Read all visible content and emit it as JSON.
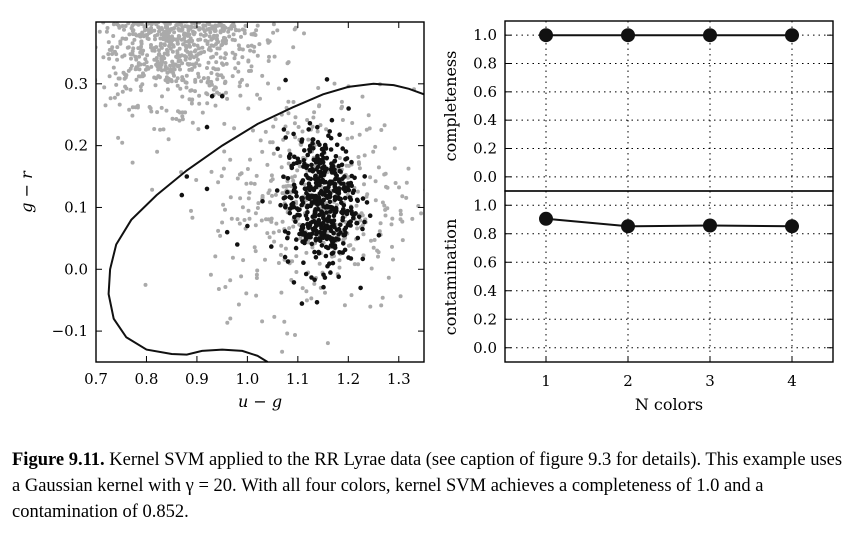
{
  "chart_data": [
    {
      "type": "scatter",
      "xlabel": "u − g",
      "ylabel": "g − r",
      "xlim": [
        0.7,
        1.35
      ],
      "ylim": [
        -0.15,
        0.4
      ],
      "xticks": [
        "0.7",
        "0.8",
        "0.9",
        "1.0",
        "1.1",
        "1.2",
        "1.3"
      ],
      "yticks": [
        "−0.1",
        "0.0",
        "0.1",
        "0.2",
        "0.3"
      ],
      "series": [
        {
          "role": "background stars",
          "color": "#aaaaaa"
        },
        {
          "role": "RR Lyrae",
          "color": "#111111"
        }
      ],
      "decision_boundary": [
        [
          1.04,
          -0.15
        ],
        [
          1.02,
          -0.14
        ],
        [
          0.99,
          -0.132
        ],
        [
          0.95,
          -0.13
        ],
        [
          0.91,
          -0.132
        ],
        [
          0.88,
          -0.138
        ],
        [
          0.85,
          -0.137
        ],
        [
          0.8,
          -0.13
        ],
        [
          0.76,
          -0.11
        ],
        [
          0.735,
          -0.08
        ],
        [
          0.725,
          -0.04
        ],
        [
          0.728,
          0.0
        ],
        [
          0.74,
          0.04
        ],
        [
          0.77,
          0.08
        ],
        [
          0.82,
          0.12
        ],
        [
          0.88,
          0.16
        ],
        [
          0.95,
          0.2
        ],
        [
          1.02,
          0.235
        ],
        [
          1.09,
          0.262
        ],
        [
          1.15,
          0.283
        ],
        [
          1.2,
          0.295
        ],
        [
          1.25,
          0.3
        ],
        [
          1.29,
          0.298
        ],
        [
          1.32,
          0.292
        ],
        [
          1.35,
          0.283
        ]
      ]
    },
    {
      "type": "line",
      "ylabel": "completeness",
      "x": [
        1,
        2,
        3,
        4
      ],
      "y": [
        1.0,
        1.0,
        1.0,
        1.0
      ],
      "ylim": [
        -0.1,
        1.1
      ],
      "yticks": [
        "0.0",
        "0.2",
        "0.4",
        "0.6",
        "0.8",
        "1.0"
      ],
      "grid": true
    },
    {
      "type": "line",
      "xlabel": "N colors",
      "ylabel": "contamination",
      "x": [
        1,
        2,
        3,
        4
      ],
      "y": [
        0.905,
        0.852,
        0.858,
        0.852
      ],
      "ylim": [
        -0.1,
        1.1
      ],
      "xticks": [
        "1",
        "2",
        "3",
        "4"
      ],
      "yticks": [
        "0.0",
        "0.2",
        "0.4",
        "0.6",
        "0.8",
        "1.0"
      ],
      "grid": true
    }
  ],
  "caption": {
    "label": "Figure 9.11.",
    "text": "Kernel SVM applied to the RR Lyrae data (see caption of figure 9.3 for details). This example uses a Gaussian kernel with γ = 20. With all four colors, kernel SVM achieves a completeness of 1.0 and a contamination of 0.852."
  }
}
